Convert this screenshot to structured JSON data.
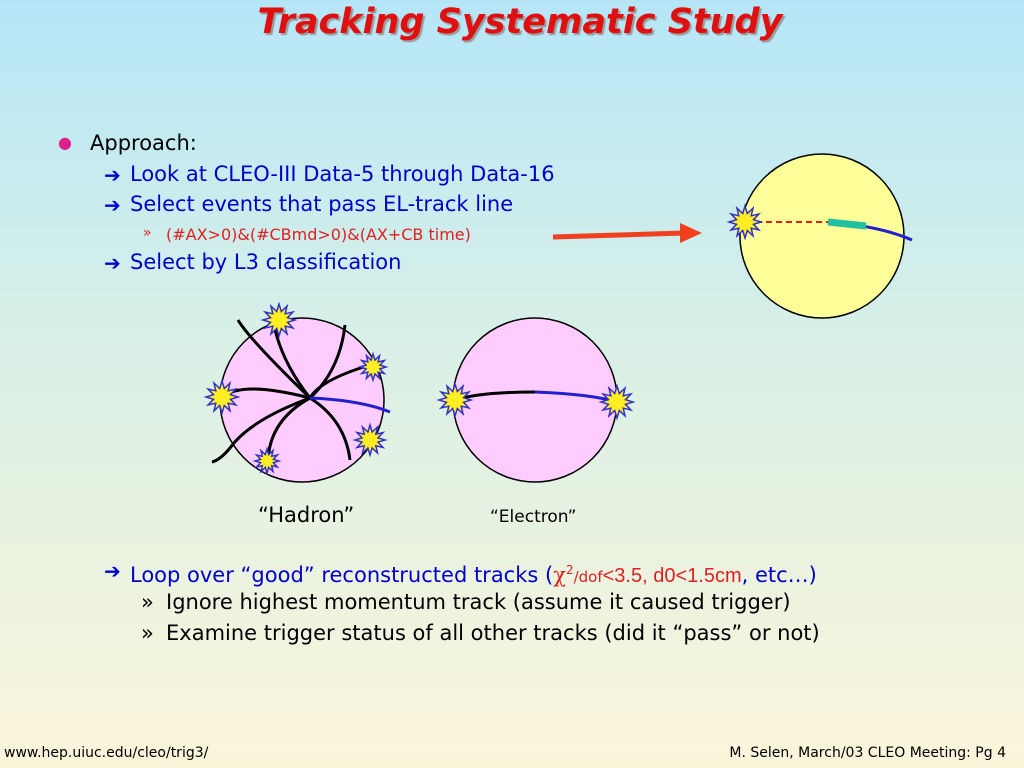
{
  "header": {
    "title": "Tracking Systematic Study"
  },
  "approach": {
    "marker": "●",
    "text": "Approach:",
    "items": [
      {
        "marker": "➔",
        "text": "Look at CLEO-III Data-5 through Data-16"
      },
      {
        "marker": "➔",
        "text": "Select events that pass EL-track line"
      },
      {
        "marker": "»",
        "text": "(#AX>0)&(#CBmd>0)&(AX+CB time)"
      },
      {
        "marker": "➔",
        "text": "Select by L3 classification"
      }
    ]
  },
  "diagrams": {
    "hadron_label": "“Hadron”",
    "electron_label": "“Electron”"
  },
  "loop": {
    "marker": "➔",
    "text": "Loop over “good” reconstructed tracks (",
    "chi": "χ",
    "sup": "2",
    "dof": "/dof",
    "cuts": "<3.5, d0<1.5cm",
    "comma": ", ",
    "etc": "etc…)",
    "subitems": [
      {
        "marker": "»",
        "text": "Ignore highest momentum track (assume it caused trigger)"
      },
      {
        "marker": "»",
        "text": "Examine trigger status of all other tracks (did it “pass” or not)"
      }
    ]
  },
  "footer": {
    "left": "www.hep.uiuc.edu/cleo/trig3/",
    "right": "M. Selen, March/03 CLEO Meeting: Pg 4"
  }
}
